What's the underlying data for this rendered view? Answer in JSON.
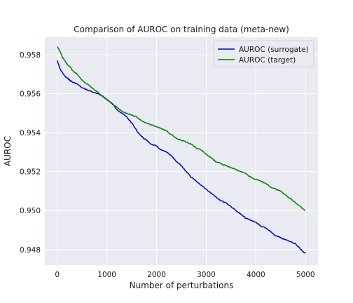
{
  "chart_data": {
    "type": "line",
    "title": "Comparison of AUROC on training data (meta-new)",
    "xlabel": "Number of perturbations",
    "ylabel": "AUROC",
    "xlim": [
      -250,
      5250
    ],
    "ylim": [
      0.9472,
      0.9589
    ],
    "xticks": [
      0,
      1000,
      2000,
      3000,
      4000,
      5000
    ],
    "yticks": [
      0.948,
      0.95,
      0.952,
      0.954,
      0.956,
      0.958
    ],
    "xtick_labels": [
      "0",
      "1000",
      "2000",
      "3000",
      "4000",
      "5000"
    ],
    "ytick_labels": [
      "0.948",
      "0.950",
      "0.952",
      "0.954",
      "0.956",
      "0.958"
    ],
    "grid": true,
    "legend_position": "top-right",
    "series": [
      {
        "name": "AUROC (surrogate)",
        "color": "#0000cc",
        "x": [
          0,
          50,
          100,
          150,
          200,
          250,
          300,
          400,
          500,
          600,
          700,
          800,
          900,
          1000,
          1100,
          1200,
          1300,
          1400,
          1500,
          1600,
          1700,
          1800,
          1900,
          2000,
          2100,
          2200,
          2300,
          2400,
          2500,
          2600,
          2700,
          2800,
          2900,
          3000,
          3100,
          3200,
          3300,
          3400,
          3500,
          3600,
          3700,
          3800,
          3900,
          4000,
          4100,
          4200,
          4300,
          4400,
          4500,
          4600,
          4700,
          4800,
          4900,
          5000
        ],
        "y": [
          0.9577,
          0.9573,
          0.9571,
          0.9569,
          0.9568,
          0.9567,
          0.9566,
          0.9565,
          0.9563,
          0.9562,
          0.9561,
          0.956,
          0.9559,
          0.9557,
          0.9555,
          0.9552,
          0.955,
          0.9548,
          0.9545,
          0.9541,
          0.9538,
          0.9536,
          0.9534,
          0.9533,
          0.9531,
          0.953,
          0.9528,
          0.9525,
          0.9523,
          0.952,
          0.9517,
          0.9515,
          0.9513,
          0.9511,
          0.9509,
          0.9507,
          0.9505,
          0.9504,
          0.9502,
          0.95,
          0.9498,
          0.9496,
          0.9495,
          0.9494,
          0.9492,
          0.9491,
          0.9489,
          0.9487,
          0.9486,
          0.9485,
          0.9484,
          0.9483,
          0.948,
          0.9478
        ]
      },
      {
        "name": "AUROC (target)",
        "color": "#008000",
        "x": [
          0,
          50,
          100,
          150,
          200,
          250,
          300,
          400,
          500,
          600,
          700,
          800,
          900,
          1000,
          1100,
          1200,
          1300,
          1400,
          1500,
          1600,
          1700,
          1800,
          1900,
          2000,
          2100,
          2200,
          2300,
          2400,
          2500,
          2600,
          2700,
          2800,
          2900,
          3000,
          3100,
          3200,
          3300,
          3400,
          3500,
          3600,
          3700,
          3800,
          3900,
          4000,
          4100,
          4200,
          4300,
          4400,
          4500,
          4600,
          4700,
          4800,
          4900,
          5000
        ],
        "y": [
          0.9584,
          0.9582,
          0.9579,
          0.9577,
          0.9575,
          0.9574,
          0.9572,
          0.957,
          0.9567,
          0.9565,
          0.9563,
          0.9561,
          0.9559,
          0.9557,
          0.9555,
          0.9553,
          0.9551,
          0.955,
          0.9549,
          0.9548,
          0.9546,
          0.9545,
          0.9544,
          0.9543,
          0.9542,
          0.9541,
          0.9539,
          0.9537,
          0.9536,
          0.9535,
          0.9534,
          0.9532,
          0.9531,
          0.9529,
          0.9527,
          0.9525,
          0.9524,
          0.9523,
          0.9522,
          0.9521,
          0.952,
          0.9519,
          0.9517,
          0.9516,
          0.9515,
          0.9514,
          0.9512,
          0.9511,
          0.951,
          0.9508,
          0.9506,
          0.9504,
          0.9502,
          0.95
        ]
      }
    ]
  }
}
